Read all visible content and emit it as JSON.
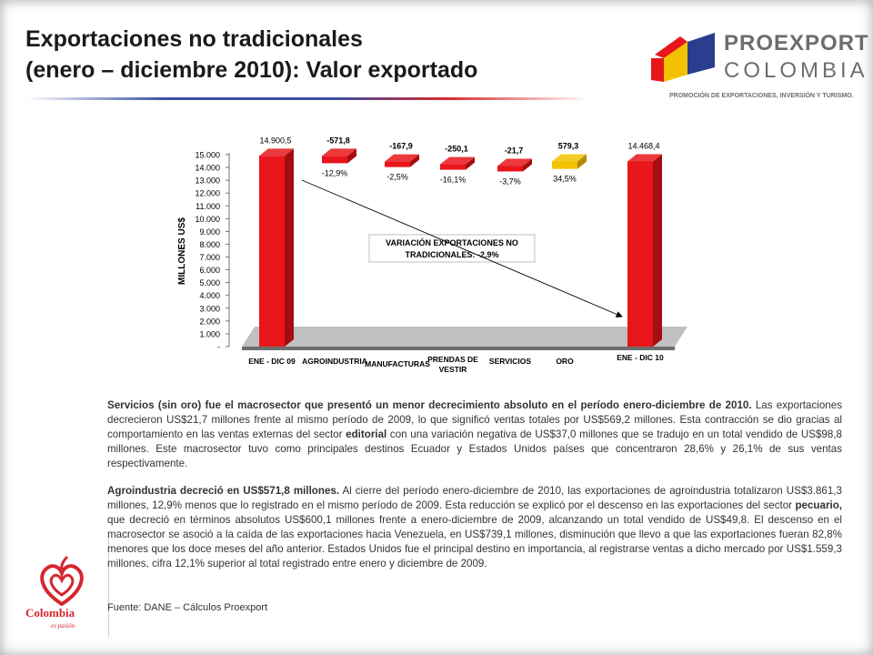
{
  "title": {
    "line1": "Exportaciones no tradicionales",
    "line2": "(enero – diciembre 2010): Valor exportado"
  },
  "logo": {
    "line1": "PROEXPORT",
    "line2": "COLOMBIA",
    "tagline": "PROMOCIÓN DE EXPORTACIONES, INVERSIÓN Y TURISMO."
  },
  "colors": {
    "red": "#e8161b",
    "red_dark": "#a50d10",
    "gold": "#f2c200",
    "gold_dark": "#b38a00",
    "floor": "#8c8c8c",
    "rule_blue": "#3a4fa3",
    "rule_red": "#d92b2b"
  },
  "chart_data": {
    "type": "bar",
    "ylabel": "MILLONES US$",
    "ylim": [
      0,
      15000
    ],
    "yticks": [
      "15.000",
      "14.000",
      "13.000",
      "12.000",
      "11.000",
      "10.000",
      "9.000",
      "8.000",
      "7.000",
      "6.000",
      "5.000",
      "4.000",
      "3.000",
      "2.000",
      "1.000",
      "-"
    ],
    "categories": [
      "ENE - DIC 09",
      "AGROINDUSTRIA",
      "MANUFACTURAS",
      "PRENDAS DE VESTIR",
      "SERVICIOS",
      "ORO",
      "ENE - DIC 10"
    ],
    "values": [
      14900.5,
      -571.8,
      -167.9,
      -250.1,
      -21.7,
      579.3,
      14468.4
    ],
    "value_labels": [
      "14.900,5",
      "-571,8",
      "-167,9",
      "-250,1",
      "-21,7",
      "579,3",
      "14.468,4"
    ],
    "pct_labels": [
      "",
      "-12,9%",
      "-2,5%",
      "-16,1%",
      "-3,7%",
      "34,5%",
      ""
    ],
    "bar_kind": [
      "total",
      "decrease",
      "decrease",
      "decrease",
      "decrease",
      "increase",
      "total"
    ],
    "annotation": {
      "line1": "VARIACIÓN EXPORTACIONES NO",
      "line2": "TRADICIONALES: -2,9%"
    }
  },
  "paragraph1": {
    "bold": "Servicios (sin oro) fue el macrosector que presentó un menor decrecimiento absoluto en el período enero-diciembre de 2010.",
    "text_a": " Las exportaciones decrecieron US$21,7 millones frente al mismo período de 2009, lo que significó ventas totales por US$569,2 millones. Esta contracción se dio gracias al comportamiento en las ventas externas del sector ",
    "bold_b": "editorial",
    "text_b": " con una variación negativa de US$37,0 millones que se tradujo en un total vendido de US$98,8 millones. Este macrosector tuvo como principales destinos Ecuador y Estados Unidos países que concentraron 28,6% y 26,1% de sus ventas respectivamente."
  },
  "paragraph2": {
    "bold": "Agroindustria decreció en US$571,8 millones.",
    "text_a": " Al cierre del período enero-diciembre de 2010, las exportaciones de agroindustria totalizaron US$3.861,3 millones, 12,9% menos que lo registrado en el mismo período de 2009. Esta reducción se explicó por el descenso en las exportaciones del sector ",
    "bold_b": "pecuario,",
    "text_b": " que decreció en términos absolutos US$600,1 millones frente a enero-diciembre de 2009, alcanzando un total vendido de US$49,8. El descenso en el macrosector se asoció a la caída de las exportaciones hacia Venezuela, en US$739,1 millones, disminución que llevo a que las exportaciones fueran 82,8% menores que los doce meses del año anterior. Estados Unidos fue el principal destino en importancia, al registrarse ventas a dicho mercado por US$1.559,3 millones, cifra 12,1% superior al total registrado entre enero y diciembre de 2009."
  },
  "source": "Fuente: DANE – Cálculos Proexport",
  "side_logo": {
    "word": "Colombia",
    "sub": "es pasión"
  }
}
